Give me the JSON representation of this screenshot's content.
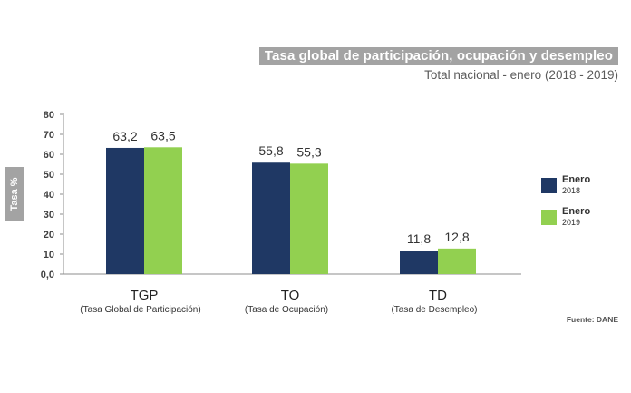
{
  "header": {
    "title": "Tasa global de participación, ocupación y desempleo",
    "subtitle": "Total nacional - enero (2018 - 2019)"
  },
  "source": "Fuente: DANE",
  "colors": {
    "enero_2018": "#1f3864",
    "enero_2019": "#92d050"
  },
  "chart_data": {
    "type": "bar",
    "title": "Tasa global de participación, ocupación y desempleo",
    "subtitle": "Total nacional - enero (2018 - 2019)",
    "ylabel": "Tasa %",
    "xlabel": "",
    "ylim": [
      0,
      80
    ],
    "yticks": [
      "0,0",
      "10",
      "20",
      "30",
      "40",
      "50",
      "60",
      "70",
      "80"
    ],
    "ytick_values": [
      0,
      10,
      20,
      30,
      40,
      50,
      60,
      70,
      80
    ],
    "grid": false,
    "legend_position": "right",
    "categories": [
      {
        "code": "TGP",
        "name": "(Tasa Global de Participación)"
      },
      {
        "code": "TO",
        "name": "(Tasa de Ocupación)"
      },
      {
        "code": "TD",
        "name": "(Tasa de Desempleo)"
      }
    ],
    "series": [
      {
        "name": "Enero",
        "year": "2018",
        "color": "#1f3864",
        "values": [
          63.2,
          55.8,
          11.8
        ],
        "labels": [
          "63,2",
          "55,8",
          "11,8"
        ]
      },
      {
        "name": "Enero",
        "year": "2019",
        "color": "#92d050",
        "values": [
          63.5,
          55.3,
          12.8
        ],
        "labels": [
          "63,5",
          "55,3",
          "12,8"
        ]
      }
    ]
  }
}
